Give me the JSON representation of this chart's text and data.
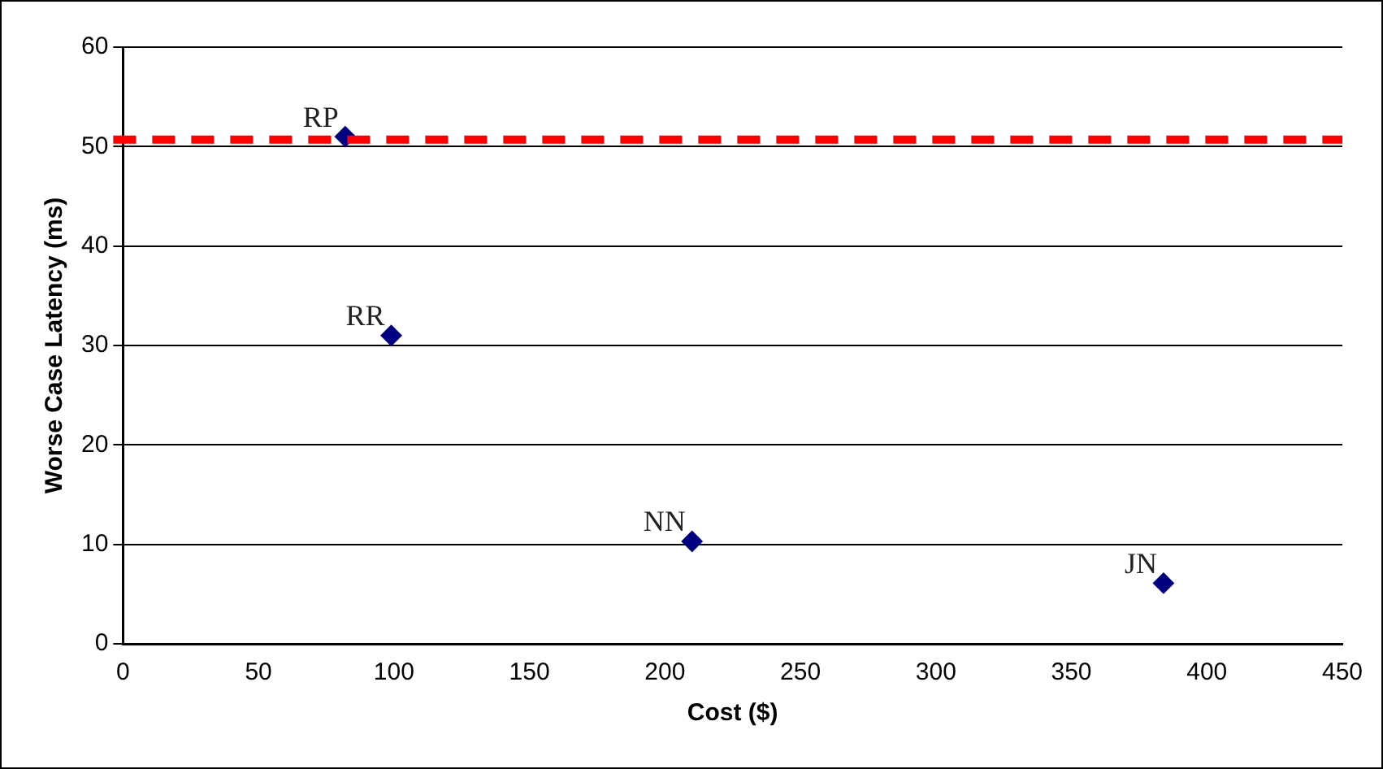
{
  "chart_data": {
    "type": "scatter",
    "xlabel": "Cost ($)",
    "ylabel": "Worse Case Latency (ms)",
    "x": [
      82,
      99,
      210,
      384
    ],
    "values": [
      51,
      31,
      10.3,
      6.1
    ],
    "color": "#000080",
    "marker": "diamond",
    "xlim": [
      0,
      450
    ],
    "xticks": [
      0,
      50,
      100,
      150,
      200,
      250,
      300,
      350,
      400,
      450
    ],
    "ylim": [
      0,
      60
    ],
    "yticks": [
      0,
      10,
      20,
      30,
      40,
      50,
      60
    ],
    "grid": "y",
    "legend": false,
    "ref_lines": [
      {
        "axis": "y",
        "value": 50.7,
        "color": "#ff0000",
        "line_style": "dashed"
      }
    ],
    "annotations": [
      {
        "text": "RP",
        "x": 82,
        "y": 51
      },
      {
        "text": "RR",
        "x": 99,
        "y": 31
      },
      {
        "text": "NN",
        "x": 210,
        "y": 10.3
      },
      {
        "text": "JN",
        "x": 384,
        "y": 6.1
      }
    ]
  }
}
